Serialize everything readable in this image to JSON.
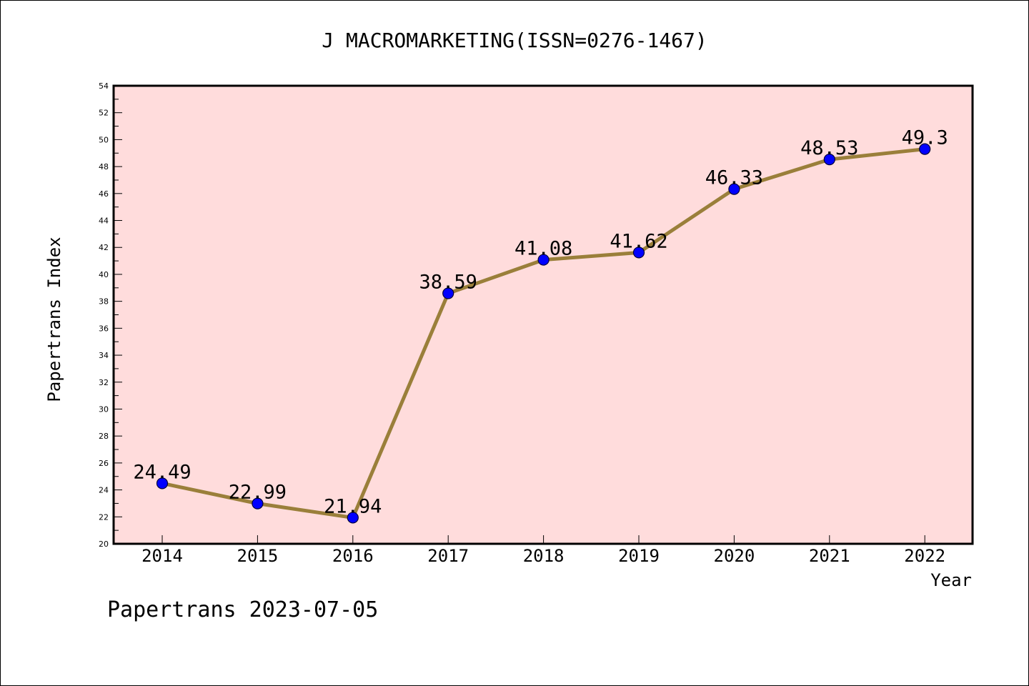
{
  "chart_data": {
    "type": "line",
    "title": "J MACROMARKETING(ISSN=0276-1467)",
    "xlabel": "Year",
    "ylabel": "Papertrans Index",
    "categories": [
      "2014",
      "2015",
      "2016",
      "2017",
      "2018",
      "2019",
      "2020",
      "2021",
      "2022"
    ],
    "values": [
      24.49,
      22.99,
      21.94,
      38.59,
      41.08,
      41.62,
      46.33,
      48.53,
      49.3
    ],
    "data_labels": [
      "24.49",
      "22.99",
      "21.94",
      "38.59",
      "41.08",
      "41.62",
      "46.33",
      "48.53",
      "49.3"
    ],
    "ylim": [
      20,
      54
    ],
    "y_major_step": 2,
    "grid": false,
    "legend": "none",
    "colors": {
      "plot_background": "#ffdcdc",
      "line": "#9a7f3a",
      "marker": "#0000ff",
      "axis": "#000000"
    }
  },
  "footer": {
    "text": "Papertrans 2023-07-05"
  }
}
